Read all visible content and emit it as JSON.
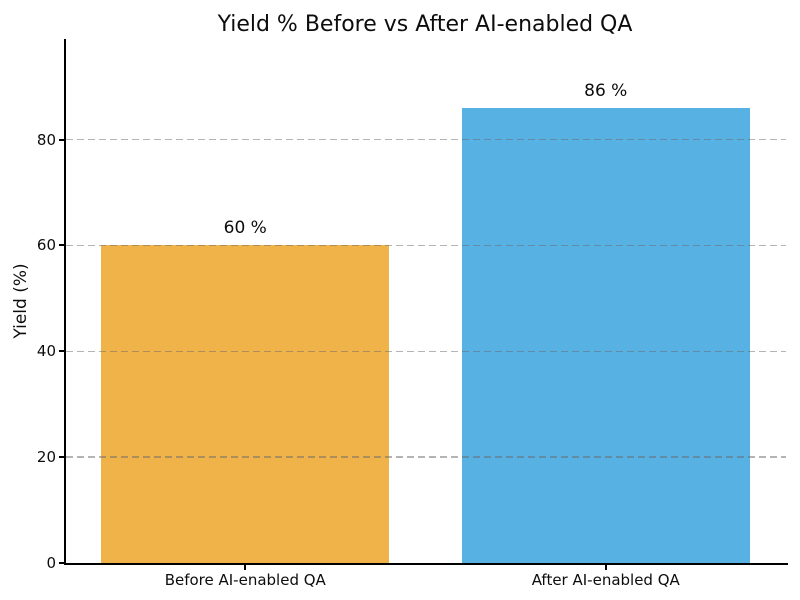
{
  "figure": {
    "background": "#ffffff"
  },
  "chart_data": {
    "type": "bar",
    "title": "Yield % Before vs After AI-enabled QA",
    "xlabel": "",
    "ylabel": "Yield (%)",
    "categories": [
      "Before AI-enabled QA",
      "After AI-enabled QA"
    ],
    "values": [
      60,
      86
    ],
    "bar_labels": [
      "60 %",
      "86 %"
    ],
    "bar_colors": [
      "#F0B34A",
      "#57B1E2"
    ],
    "yticks": [
      0,
      20,
      40,
      60,
      80
    ],
    "ylim": [
      0,
      99
    ],
    "bar_width_fraction": 0.8,
    "grid": {
      "axis": "y",
      "style": "dashed",
      "color": "#b9b9b9",
      "above_bars": true
    },
    "legend": "none"
  }
}
